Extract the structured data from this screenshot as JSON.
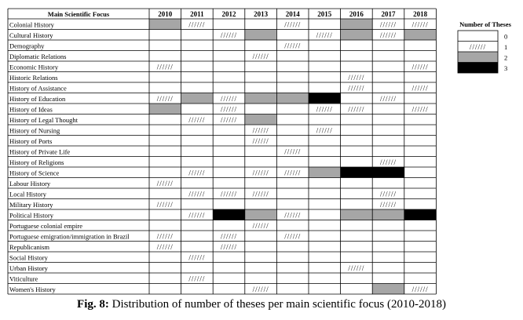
{
  "chart_data": {
    "type": "heatmap",
    "corner_label": "Main Scientific Focus",
    "years": [
      "2010",
      "2011",
      "2012",
      "2013",
      "2014",
      "2015",
      "2016",
      "2017",
      "2018"
    ],
    "rows": [
      {
        "label": "Colonial History",
        "values": [
          2,
          1,
          0,
          0,
          1,
          0,
          2,
          1,
          1
        ]
      },
      {
        "label": "Cultural History",
        "values": [
          0,
          0,
          1,
          2,
          0,
          1,
          2,
          1,
          2
        ]
      },
      {
        "label": "Demography",
        "values": [
          0,
          0,
          0,
          0,
          1,
          0,
          0,
          0,
          0
        ]
      },
      {
        "label": "Diplomatic Relations",
        "values": [
          0,
          0,
          0,
          1,
          0,
          0,
          0,
          0,
          0
        ]
      },
      {
        "label": "Economic History",
        "values": [
          1,
          0,
          0,
          0,
          0,
          0,
          0,
          0,
          1
        ]
      },
      {
        "label": "Historic Relations",
        "values": [
          0,
          0,
          0,
          0,
          0,
          0,
          1,
          0,
          0
        ]
      },
      {
        "label": "History of Assistance",
        "values": [
          0,
          0,
          0,
          0,
          0,
          0,
          1,
          0,
          1
        ]
      },
      {
        "label": "History of Education",
        "values": [
          1,
          2,
          1,
          2,
          2,
          3,
          0,
          1,
          0
        ]
      },
      {
        "label": "History of Ideas",
        "values": [
          2,
          0,
          1,
          0,
          0,
          1,
          1,
          0,
          1
        ]
      },
      {
        "label": "History of Legal Thought",
        "values": [
          0,
          1,
          1,
          2,
          0,
          0,
          0,
          0,
          0
        ]
      },
      {
        "label": "History of Nursing",
        "values": [
          0,
          0,
          0,
          1,
          0,
          1,
          0,
          0,
          0
        ]
      },
      {
        "label": "History of Ports",
        "values": [
          0,
          0,
          0,
          1,
          0,
          0,
          0,
          0,
          0
        ]
      },
      {
        "label": "History of Private Life",
        "values": [
          0,
          0,
          0,
          0,
          1,
          0,
          0,
          0,
          0
        ]
      },
      {
        "label": "History of Religions",
        "values": [
          0,
          0,
          0,
          0,
          0,
          0,
          0,
          1,
          0
        ]
      },
      {
        "label": "History of Science",
        "values": [
          0,
          1,
          0,
          1,
          1,
          2,
          3,
          3,
          0
        ]
      },
      {
        "label": "Labour History",
        "values": [
          1,
          0,
          0,
          0,
          0,
          0,
          0,
          0,
          0
        ]
      },
      {
        "label": "Local History",
        "values": [
          0,
          1,
          1,
          1,
          0,
          0,
          0,
          1,
          0
        ]
      },
      {
        "label": "Military History",
        "values": [
          1,
          0,
          0,
          0,
          0,
          0,
          0,
          1,
          0
        ]
      },
      {
        "label": "Political History",
        "values": [
          0,
          1,
          3,
          2,
          1,
          0,
          2,
          2,
          3
        ]
      },
      {
        "label": "Portuguese colonial empire",
        "values": [
          0,
          0,
          0,
          1,
          0,
          0,
          0,
          0,
          0
        ]
      },
      {
        "label": "Portuguese emigration/immigration in Brazil",
        "values": [
          1,
          0,
          1,
          0,
          1,
          0,
          0,
          0,
          0
        ]
      },
      {
        "label": "Republicanism",
        "values": [
          1,
          0,
          1,
          0,
          0,
          0,
          0,
          0,
          0
        ]
      },
      {
        "label": "Social History",
        "values": [
          0,
          1,
          0,
          0,
          0,
          0,
          0,
          0,
          0
        ]
      },
      {
        "label": "Urban History",
        "values": [
          0,
          0,
          0,
          0,
          0,
          0,
          1,
          0,
          0
        ]
      },
      {
        "label": "Viticulture",
        "values": [
          0,
          1,
          0,
          0,
          0,
          0,
          0,
          0,
          0
        ]
      },
      {
        "label": "Women's History",
        "values": [
          0,
          0,
          0,
          1,
          0,
          0,
          0,
          2,
          1
        ]
      }
    ],
    "legend": {
      "title": "Number of Theses",
      "placement": "right",
      "items": [
        {
          "label": "0",
          "value": 0
        },
        {
          "label": "1",
          "value": 1
        },
        {
          "label": "2",
          "value": 2
        },
        {
          "label": "3",
          "value": 3
        }
      ]
    },
    "encoding": {
      "0": "white",
      "1": "hatched",
      "2": "gray",
      "3": "black"
    },
    "colors": {
      "0": "#ffffff",
      "1": "#ffffff",
      "2": "#a6a6a6",
      "3": "#000000",
      "hatch": "#555555",
      "grid": "#000000"
    },
    "hatch_glyph": "//////"
  },
  "caption": {
    "fig_label": "Fig. 8:",
    "text": " Distribution of number of theses per main scientific focus (2010-2018)"
  }
}
